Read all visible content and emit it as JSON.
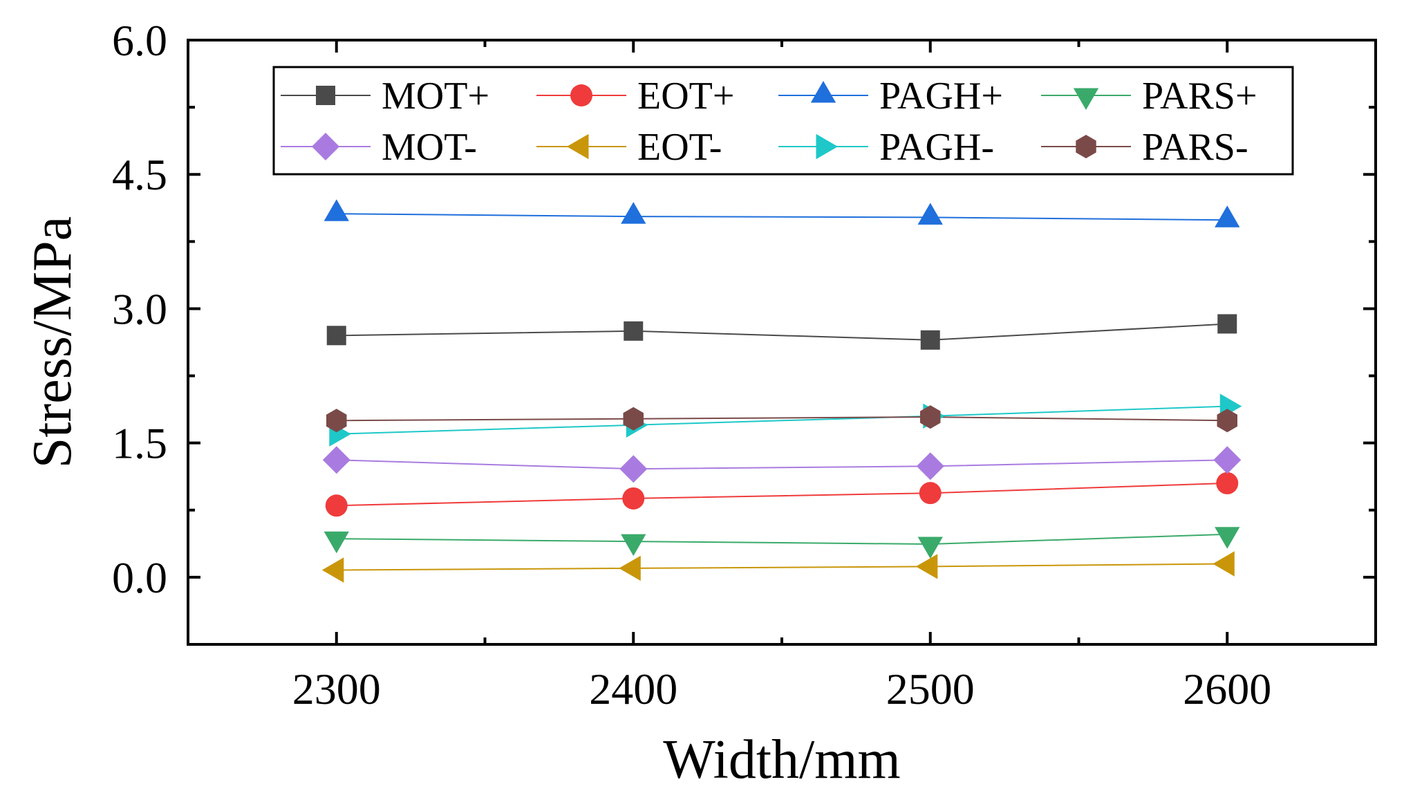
{
  "chart_data": {
    "type": "line",
    "title": "",
    "xlabel": "Width/mm",
    "ylabel": "Stress/MPa",
    "x": [
      2300,
      2400,
      2500,
      2600
    ],
    "xlim": [
      2250,
      2650
    ],
    "ylim": [
      -0.75,
      6.0
    ],
    "x_ticks": [
      "2300",
      "2400",
      "2500",
      "2600"
    ],
    "y_ticks": [
      "0.0",
      "1.5",
      "3.0",
      "4.5",
      "6.0"
    ],
    "y_tick_values": [
      0.0,
      1.5,
      3.0,
      4.5,
      6.0
    ],
    "grid": false,
    "legend_position": "top",
    "series": [
      {
        "name": "MOT+",
        "marker": "square",
        "color": "#4a4a4a",
        "values": [
          2.7,
          2.75,
          2.65,
          2.83
        ]
      },
      {
        "name": "EOT+",
        "marker": "circle",
        "color": "#ef3b3b",
        "values": [
          0.8,
          0.88,
          0.94,
          1.05
        ]
      },
      {
        "name": "PAGH+",
        "marker": "triangle-up",
        "color": "#1f6fdc",
        "values": [
          4.06,
          4.03,
          4.02,
          3.99
        ]
      },
      {
        "name": "PARS+",
        "marker": "triangle-down",
        "color": "#3aaa6a",
        "values": [
          0.43,
          0.4,
          0.37,
          0.48
        ]
      },
      {
        "name": "MOT-",
        "marker": "diamond",
        "color": "#a97be0",
        "values": [
          1.31,
          1.21,
          1.24,
          1.31
        ]
      },
      {
        "name": "EOT-",
        "marker": "triangle-left",
        "color": "#c9960a",
        "values": [
          0.08,
          0.1,
          0.12,
          0.15
        ]
      },
      {
        "name": "PAGH-",
        "marker": "triangle-right",
        "color": "#1ec8c8",
        "values": [
          1.6,
          1.7,
          1.8,
          1.91
        ]
      },
      {
        "name": "PARS-",
        "marker": "hexagon",
        "color": "#7a4a48",
        "values": [
          1.75,
          1.77,
          1.79,
          1.75
        ]
      }
    ]
  }
}
